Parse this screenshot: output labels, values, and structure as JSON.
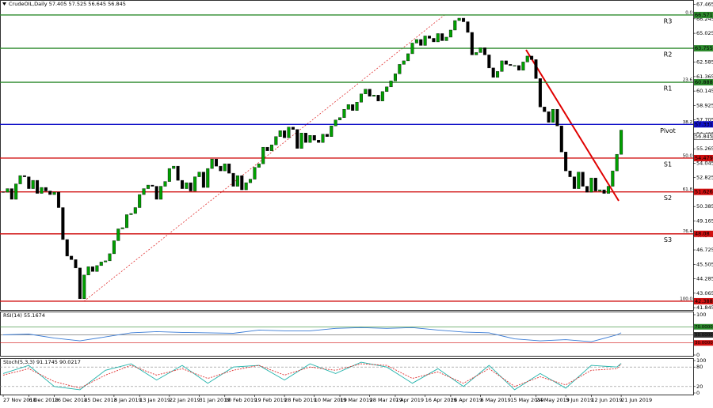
{
  "chart_data": [
    {
      "type": "candlestick",
      "title": "CrudeOIL,Daily 57.405 57.525 56.645 56.845",
      "values": [
        51.6,
        51.9,
        51.0,
        52.3,
        53.0,
        52.9,
        51.9,
        52.6,
        51.5,
        52.0,
        51.7,
        51.4,
        51.6,
        50.3,
        47.6,
        46.2,
        45.9,
        45.2,
        42.6,
        44.6,
        45.3,
        44.9,
        45.4,
        45.7,
        45.8,
        46.4,
        47.5,
        48.5,
        48.6,
        49.7,
        49.8,
        50.3,
        51.4,
        51.9,
        52.2,
        52.1,
        51.0,
        52.1,
        52.5,
        53.6,
        53.8,
        52.6,
        51.9,
        52.4,
        51.7,
        52.9,
        53.3,
        52.0,
        53.6,
        54.4,
        53.8,
        53.4,
        54.0,
        53.2,
        52.1,
        53.0,
        51.8,
        52.4,
        52.7,
        53.7,
        54.0,
        55.4,
        55.1,
        55.6,
        56.3,
        56.8,
        56.2,
        57.1,
        56.9,
        55.3,
        56.6,
        55.8,
        56.4,
        56.0,
        55.8,
        56.5,
        56.3,
        57.2,
        57.7,
        57.9,
        58.6,
        59.0,
        58.5,
        59.2,
        59.9,
        60.3,
        59.7,
        59.8,
        59.3,
        60.1,
        60.5,
        61.0,
        61.6,
        62.4,
        62.7,
        63.3,
        64.2,
        64.5,
        64.0,
        64.8,
        64.6,
        64.3,
        65.0,
        64.4,
        64.7,
        65.3,
        66.1,
        66.3,
        66.0,
        65.1,
        63.2,
        63.4,
        63.8,
        63.2,
        62.1,
        61.3,
        61.8,
        62.7,
        62.4,
        62.3,
        62.3,
        61.9,
        62.6,
        63.1,
        62.8,
        61.2,
        58.8,
        58.4,
        57.5,
        58.6,
        57.2,
        55.0,
        53.4,
        52.9,
        51.9,
        53.3,
        52.1,
        51.6,
        52.8,
        51.7,
        51.8,
        51.5,
        52.1,
        53.4,
        54.8,
        56.845
      ],
      "up_color": "#00a000",
      "down_color": "#000000",
      "last": 56.845,
      "ylim": [
        41.65,
        67.57
      ],
      "yticks": [
        41.845,
        43.065,
        44.285,
        45.505,
        46.725,
        47.945,
        49.165,
        50.385,
        51.605,
        52.825,
        54.045,
        55.265,
        56.485,
        57.705,
        58.925,
        60.145,
        61.365,
        62.585,
        63.805,
        65.025,
        66.245,
        67.465
      ],
      "xlim": [
        -0.75,
        161.9
      ],
      "xticks": [
        {
          "value": 0,
          "label": "27 Nov 2018"
        },
        {
          "value": 6,
          "label": "6 Dec 2018"
        },
        {
          "value": 12,
          "label": "16 Dec 2018"
        },
        {
          "value": 19,
          "label": "25 Dec 2018"
        },
        {
          "value": 26,
          "label": "3 Jan 2019"
        },
        {
          "value": 32,
          "label": "13 Jan 2019"
        },
        {
          "value": 39,
          "label": "22 Jan 2019"
        },
        {
          "value": 46,
          "label": "31 Jan 2019"
        },
        {
          "value": 52,
          "label": "10 Feb 2019"
        },
        {
          "value": 59,
          "label": "19 Feb 2019"
        },
        {
          "value": 66,
          "label": "28 Feb 2019"
        },
        {
          "value": 73,
          "label": "10 Mar 2019"
        },
        {
          "value": 79,
          "label": "19 Mar 2019"
        },
        {
          "value": 86,
          "label": "28 Mar 2019"
        },
        {
          "value": 92,
          "label": "7 Apr 2019"
        },
        {
          "value": 99,
          "label": "16 Apr 2019"
        },
        {
          "value": 105,
          "label": "26 Apr 2019"
        },
        {
          "value": 112,
          "label": "6 May 2019"
        },
        {
          "value": 119,
          "label": "15 May 2019"
        },
        {
          "value": 125,
          "label": "24 May 2019"
        },
        {
          "value": 132,
          "label": "3 Jun 2019"
        },
        {
          "value": 138,
          "label": "12 Jun 2019"
        },
        {
          "value": 145,
          "label": "21 Jun 2019"
        }
      ],
      "levels": [
        {
          "name": "R3",
          "value": 66.571,
          "fib": "0.0",
          "color": "#2e8b2e"
        },
        {
          "name": "R2",
          "value": 63.755,
          "color": "#2e8b2e"
        },
        {
          "name": "R1",
          "value": 60.888,
          "fib": "23.6",
          "color": "#2e8b2e"
        },
        {
          "name": "Pivot",
          "value": 57.331,
          "fib": "38.2",
          "color": "#1010c8"
        },
        {
          "name": "S1",
          "value": 54.479,
          "fib": "50.0",
          "color": "#d01010"
        },
        {
          "name": "S2",
          "value": 51.626,
          "fib": "61.8",
          "color": "#d01010"
        },
        {
          "name": "S3",
          "value": 48.08,
          "fib": "76.4",
          "color": "#d01010"
        },
        {
          "value": 42.388,
          "fib": "100.0",
          "color": "#d01010"
        }
      ]
    },
    {
      "type": "line",
      "title": "RSI(14) 55.1674",
      "x": [
        0,
        6,
        12,
        18,
        24,
        30,
        36,
        42,
        48,
        54,
        60,
        66,
        72,
        78,
        84,
        90,
        96,
        102,
        108,
        114,
        120,
        126,
        132,
        138,
        144,
        145
      ],
      "series": [
        {
          "color": "#3a7bd5",
          "values": [
            50,
            52,
            42,
            35,
            45,
            55,
            58,
            56,
            55,
            54,
            62,
            60,
            60,
            66,
            68,
            66,
            68,
            62,
            57,
            55,
            40,
            35,
            38,
            33,
            50,
            55.1674
          ]
        }
      ],
      "ylim": [
        0,
        100
      ],
      "yticks": [
        0,
        100
      ],
      "levels": [
        {
          "value": 70,
          "label": "70.0000",
          "color": "#2e8b2e"
        },
        {
          "value": 50,
          "label": "50.0000",
          "color": "#333333"
        },
        {
          "value": 30,
          "label": "30.0000",
          "color": "#d01010"
        }
      ]
    },
    {
      "type": "line",
      "title": "Stoch(5,3,3) 91.1745 90.0217",
      "x": [
        0,
        6,
        12,
        18,
        24,
        30,
        36,
        42,
        48,
        54,
        60,
        66,
        72,
        78,
        84,
        90,
        96,
        102,
        108,
        114,
        120,
        126,
        132,
        138,
        144,
        145
      ],
      "series": [
        {
          "color": "#20b2aa",
          "values": [
            60,
            85,
            20,
            10,
            70,
            90,
            40,
            85,
            30,
            80,
            85,
            40,
            90,
            60,
            95,
            80,
            30,
            75,
            20,
            85,
            10,
            60,
            15,
            85,
            80,
            91.1745
          ]
        },
        {
          "color": "#e03030",
          "dash": true,
          "values": [
            55,
            75,
            35,
            15,
            55,
            85,
            55,
            75,
            45,
            70,
            85,
            55,
            80,
            70,
            90,
            85,
            45,
            65,
            30,
            75,
            20,
            50,
            25,
            70,
            75,
            90.0217
          ]
        }
      ],
      "ylim": [
        0,
        100
      ],
      "yticks": [
        0,
        20,
        80,
        100
      ]
    }
  ]
}
